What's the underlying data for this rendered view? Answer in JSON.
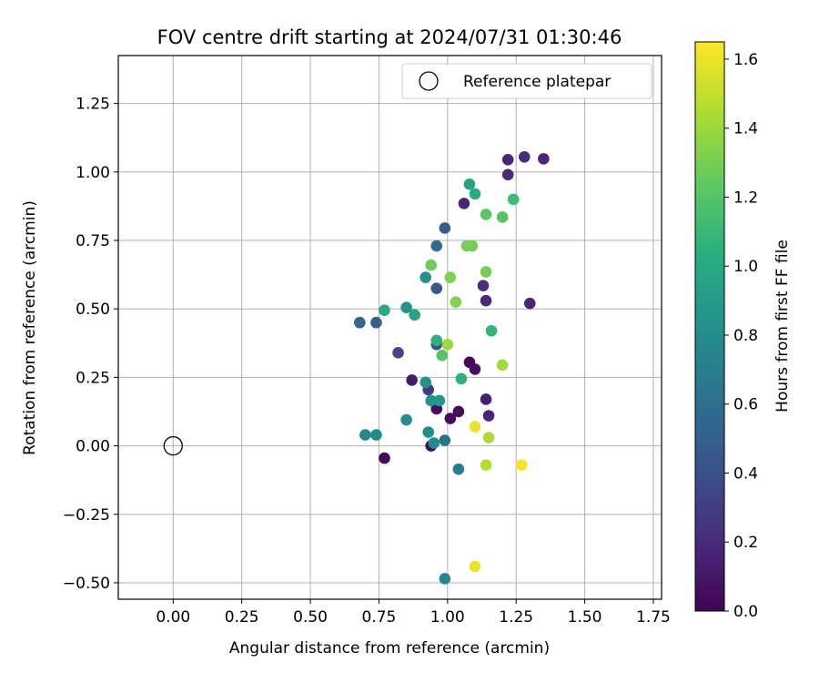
{
  "chart_data": {
    "type": "scatter",
    "title": "FOV centre drift starting at 2024/07/31 01:30:46",
    "xlabel": "Angular distance from reference (arcmin)",
    "ylabel": "Rotation from reference (arcmin)",
    "xlim": [
      -0.2,
      1.78
    ],
    "ylim": [
      -0.56,
      1.425
    ],
    "xticks": [
      0.0,
      0.25,
      0.5,
      0.75,
      1.0,
      1.25,
      1.5,
      1.75
    ],
    "xtick_labels": [
      "0.00",
      "0.25",
      "0.50",
      "0.75",
      "1.00",
      "1.25",
      "1.50",
      "1.75"
    ],
    "yticks": [
      -0.5,
      -0.25,
      0.0,
      0.25,
      0.5,
      0.75,
      1.0,
      1.25
    ],
    "ytick_labels": [
      "−0.50",
      "−0.25",
      "0.00",
      "0.25",
      "0.50",
      "0.75",
      "1.00",
      "1.25"
    ],
    "grid": true,
    "legend": {
      "placement": "top-right",
      "label": "Reference platepar",
      "marker": "open-circle"
    },
    "reference_point": {
      "x": 0.0,
      "y": 0.0,
      "label": "Reference platepar"
    },
    "colorbar": {
      "label": "Hours from first FF file",
      "colormap": "viridis",
      "range": [
        0.0,
        1.65
      ],
      "ticks": [
        0.0,
        0.2,
        0.4,
        0.6,
        0.8,
        1.0,
        1.2,
        1.4,
        1.6
      ],
      "tick_labels": [
        "0.0",
        "0.2",
        "0.4",
        "0.6",
        "0.8",
        "1.0",
        "1.2",
        "1.4",
        "1.6"
      ]
    },
    "points": [
      {
        "x": 0.77,
        "y": -0.045,
        "c": 0.02
      },
      {
        "x": 0.94,
        "y": 0.0,
        "c": 0.03
      },
      {
        "x": 0.96,
        "y": 0.135,
        "c": 0.05
      },
      {
        "x": 1.01,
        "y": 0.1,
        "c": 0.04
      },
      {
        "x": 1.04,
        "y": 0.125,
        "c": 0.05
      },
      {
        "x": 1.08,
        "y": 0.305,
        "c": 0.04
      },
      {
        "x": 1.1,
        "y": 0.28,
        "c": 0.07
      },
      {
        "x": 0.87,
        "y": 0.24,
        "c": 0.12
      },
      {
        "x": 0.93,
        "y": 0.205,
        "c": 0.28
      },
      {
        "x": 1.14,
        "y": 0.17,
        "c": 0.14
      },
      {
        "x": 1.15,
        "y": 0.11,
        "c": 0.18
      },
      {
        "x": 1.13,
        "y": 0.585,
        "c": 0.21
      },
      {
        "x": 1.14,
        "y": 0.53,
        "c": 0.2
      },
      {
        "x": 1.3,
        "y": 0.52,
        "c": 0.18
      },
      {
        "x": 1.06,
        "y": 0.885,
        "c": 0.18
      },
      {
        "x": 1.22,
        "y": 1.045,
        "c": 0.18
      },
      {
        "x": 1.28,
        "y": 1.055,
        "c": 0.2
      },
      {
        "x": 1.35,
        "y": 1.048,
        "c": 0.18
      },
      {
        "x": 1.22,
        "y": 0.99,
        "c": 0.2
      },
      {
        "x": 0.82,
        "y": 0.34,
        "c": 0.35
      },
      {
        "x": 0.96,
        "y": 0.37,
        "c": 0.4
      },
      {
        "x": 0.96,
        "y": 0.575,
        "c": 0.45
      },
      {
        "x": 0.99,
        "y": 0.795,
        "c": 0.5
      },
      {
        "x": 0.96,
        "y": 0.73,
        "c": 0.58
      },
      {
        "x": 0.68,
        "y": 0.45,
        "c": 0.55
      },
      {
        "x": 0.74,
        "y": 0.45,
        "c": 0.5
      },
      {
        "x": 0.99,
        "y": 0.02,
        "c": 0.62
      },
      {
        "x": 1.04,
        "y": -0.085,
        "c": 0.68
      },
      {
        "x": 0.99,
        "y": -0.485,
        "c": 0.75
      },
      {
        "x": 0.7,
        "y": 0.04,
        "c": 0.78
      },
      {
        "x": 0.74,
        "y": 0.04,
        "c": 0.78
      },
      {
        "x": 0.85,
        "y": 0.095,
        "c": 0.8
      },
      {
        "x": 0.93,
        "y": 0.05,
        "c": 0.82
      },
      {
        "x": 0.95,
        "y": 0.01,
        "c": 0.8
      },
      {
        "x": 0.94,
        "y": 0.165,
        "c": 0.84
      },
      {
        "x": 0.97,
        "y": 0.165,
        "c": 0.86
      },
      {
        "x": 0.92,
        "y": 0.232,
        "c": 0.84
      },
      {
        "x": 0.92,
        "y": 0.615,
        "c": 0.84
      },
      {
        "x": 0.85,
        "y": 0.505,
        "c": 0.85
      },
      {
        "x": 0.88,
        "y": 0.478,
        "c": 0.95
      },
      {
        "x": 0.77,
        "y": 0.495,
        "c": 1.0
      },
      {
        "x": 1.08,
        "y": 0.955,
        "c": 0.95
      },
      {
        "x": 1.1,
        "y": 0.92,
        "c": 1.02
      },
      {
        "x": 0.96,
        "y": 0.385,
        "c": 1.05
      },
      {
        "x": 1.05,
        "y": 0.245,
        "c": 1.05
      },
      {
        "x": 1.16,
        "y": 0.42,
        "c": 1.08
      },
      {
        "x": 1.24,
        "y": 0.9,
        "c": 1.12
      },
      {
        "x": 1.14,
        "y": 0.845,
        "c": 1.22
      },
      {
        "x": 1.2,
        "y": 0.835,
        "c": 1.2
      },
      {
        "x": 0.98,
        "y": 0.33,
        "c": 1.2
      },
      {
        "x": 1.07,
        "y": 0.73,
        "c": 1.3
      },
      {
        "x": 1.09,
        "y": 0.73,
        "c": 1.3
      },
      {
        "x": 0.94,
        "y": 0.66,
        "c": 1.28
      },
      {
        "x": 1.14,
        "y": 0.635,
        "c": 1.3
      },
      {
        "x": 1.01,
        "y": 0.615,
        "c": 1.32
      },
      {
        "x": 1.03,
        "y": 0.525,
        "c": 1.34
      },
      {
        "x": 1.0,
        "y": 0.37,
        "c": 1.4
      },
      {
        "x": 1.2,
        "y": 0.295,
        "c": 1.42
      },
      {
        "x": 1.15,
        "y": 0.03,
        "c": 1.44
      },
      {
        "x": 1.14,
        "y": -0.07,
        "c": 1.46
      },
      {
        "x": 1.1,
        "y": 0.07,
        "c": 1.6
      },
      {
        "x": 1.27,
        "y": -0.07,
        "c": 1.62
      },
      {
        "x": 1.1,
        "y": -0.44,
        "c": 1.6
      }
    ]
  }
}
